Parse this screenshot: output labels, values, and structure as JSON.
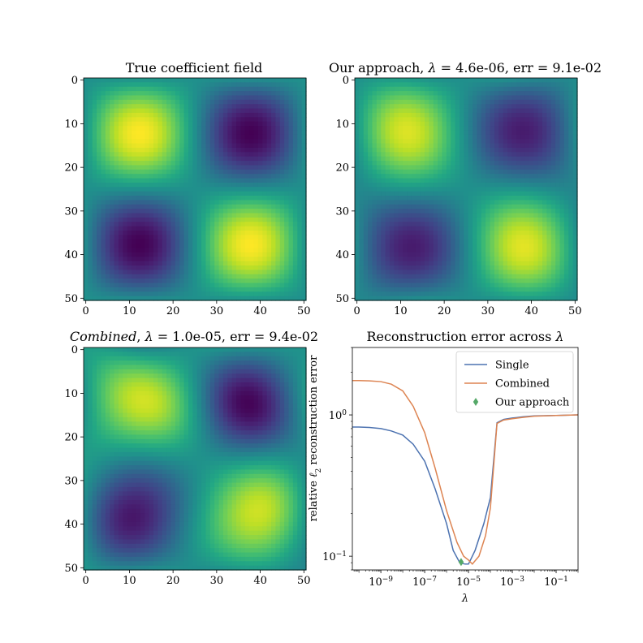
{
  "chart_data": [
    {
      "type": "heatmap",
      "title": "True coefficient field",
      "grid_size": 51,
      "variant": "true",
      "xticks": [
        "0",
        "10",
        "20",
        "30",
        "40",
        "50"
      ],
      "yticks": [
        "0",
        "10",
        "20",
        "30",
        "40",
        "50"
      ],
      "colormap": "viridis",
      "description_values": "2x2 pattern: high (yellow) at top-left and bottom-right, low (purple) at top-right and bottom-left"
    },
    {
      "type": "heatmap",
      "title_parts": [
        "Our approach, ",
        "λ",
        " = 4.6e-06, err  = 9.1e-02"
      ],
      "grid_size": 51,
      "variant": "ours",
      "xticks": [
        "0",
        "10",
        "20",
        "30",
        "40",
        "50"
      ],
      "yticks": [
        "0",
        "10",
        "20",
        "30",
        "40",
        "50"
      ],
      "colormap": "viridis"
    },
    {
      "type": "heatmap",
      "title_parts": [
        "Combined",
        ", ",
        "λ",
        " = 1.0e-05, err  = 9.4e-02"
      ],
      "grid_size": 51,
      "variant": "combined",
      "xticks": [
        "0",
        "10",
        "20",
        "30",
        "40",
        "50"
      ],
      "yticks": [
        "0",
        "10",
        "20",
        "30",
        "40",
        "50"
      ],
      "colormap": "viridis"
    },
    {
      "type": "line",
      "title_parts": [
        "Reconstruction error across ",
        "λ"
      ],
      "xlabel": "λ",
      "ylabel_parts": [
        "relative ",
        "ℓ",
        "2",
        " reconstruction error"
      ],
      "xscale": "log",
      "yscale": "log",
      "xlim": [
        5e-11,
        1
      ],
      "ylim": [
        0.08,
        3.0
      ],
      "xticks": [
        {
          "base": "10",
          "exp": "−9",
          "value": 1e-09
        },
        {
          "base": "10",
          "exp": "−7",
          "value": 1e-07
        },
        {
          "base": "10",
          "exp": "−5",
          "value": 1e-05
        },
        {
          "base": "10",
          "exp": "−3",
          "value": 0.001
        },
        {
          "base": "10",
          "exp": "−1",
          "value": 0.1
        }
      ],
      "yticks": [
        {
          "base": "10",
          "exp": "−1",
          "value": 0.1
        },
        {
          "base": "10",
          "exp": "0",
          "value": 1.0
        }
      ],
      "legend_position": "upper-right",
      "series": [
        {
          "name": "Single",
          "color": "#4c72b0",
          "x": [
            5e-11,
            1e-10,
            3e-10,
            1e-09,
            3e-09,
            1e-08,
            3e-08,
            1e-07,
            3e-07,
            1e-06,
            2e-06,
            4e-06,
            7e-06,
            1e-05,
            2e-05,
            5e-05,
            0.0001,
            0.0002,
            0.0004,
            0.001,
            0.003,
            0.01,
            0.1,
            1
          ],
          "y": [
            0.82,
            0.82,
            0.815,
            0.8,
            0.77,
            0.72,
            0.62,
            0.47,
            0.3,
            0.17,
            0.11,
            0.09,
            0.088,
            0.088,
            0.11,
            0.17,
            0.26,
            0.88,
            0.93,
            0.95,
            0.97,
            0.985,
            0.99,
            1.0
          ]
        },
        {
          "name": "Combined",
          "color": "#dd8452",
          "x": [
            5e-11,
            1e-10,
            3e-10,
            1e-09,
            3e-09,
            1e-08,
            3e-08,
            1e-07,
            3e-07,
            1e-06,
            3e-06,
            6e-06,
            1e-05,
            1.5e-05,
            3e-05,
            6e-05,
            0.0001,
            0.0002,
            0.0004,
            0.001,
            0.003,
            0.01,
            0.1,
            1
          ],
          "y": [
            1.75,
            1.75,
            1.74,
            1.72,
            1.65,
            1.48,
            1.15,
            0.75,
            0.42,
            0.21,
            0.125,
            0.1,
            0.094,
            0.088,
            0.1,
            0.14,
            0.22,
            0.87,
            0.92,
            0.94,
            0.96,
            0.98,
            0.99,
            1.0
          ]
        },
        {
          "name": "Our approach",
          "type": "scatter",
          "marker": "diamond",
          "color": "#55a868",
          "x": [
            4.6e-06
          ],
          "y": [
            0.091
          ]
        }
      ]
    }
  ]
}
